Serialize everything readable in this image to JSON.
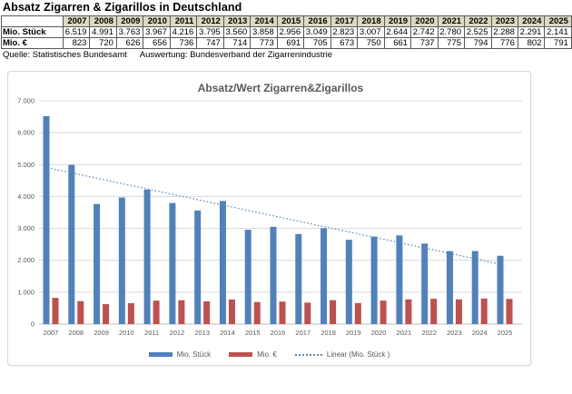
{
  "page": {
    "title": "Absatz Zigarren & Zigarillos in Deutschland",
    "source": {
      "quelle": "Quelle: Statistisches Bundesamt",
      "auswertung": "Auswertung: Bundesverband der Zigarrenindustrie"
    }
  },
  "table": {
    "years": [
      "2007",
      "2008",
      "2009",
      "2010",
      "2011",
      "2012",
      "2013",
      "2014",
      "2015",
      "2016",
      "2017",
      "2018",
      "2019",
      "2020",
      "2021",
      "2022",
      "2023",
      "2024",
      "2025"
    ],
    "rows": [
      {
        "label": "Mio. Stück",
        "values": [
          "6.519",
          "4.991",
          "3.763",
          "3.967",
          "4.216",
          "3.795",
          "3.560",
          "3.858",
          "2.956",
          "3.049",
          "2.823",
          "3.007",
          "2.644",
          "2.742",
          "2.780",
          "2.525",
          "2.288",
          "2.291",
          "2.141"
        ]
      },
      {
        "label": "Mio. €",
        "values": [
          "823",
          "720",
          "626",
          "656",
          "736",
          "747",
          "714",
          "773",
          "691",
          "705",
          "673",
          "750",
          "661",
          "737",
          "775",
          "794",
          "776",
          "802",
          "791"
        ]
      }
    ],
    "header_bg": "#ddd9c3"
  },
  "chart_data": {
    "type": "bar",
    "title": "Absatz/Wert Zigarren&Zigarillos",
    "title_color": "#595959",
    "categories": [
      "2007",
      "2008",
      "2009",
      "2010",
      "2011",
      "2012",
      "2013",
      "2014",
      "2015",
      "2016",
      "2017",
      "2018",
      "2019",
      "2020",
      "2021",
      "2022",
      "2023",
      "2024",
      "2025"
    ],
    "series": [
      {
        "name": "Mio. Stück",
        "color": "#4F81BD",
        "values": [
          6519,
          4991,
          3763,
          3967,
          4216,
          3795,
          3560,
          3858,
          2956,
          3049,
          2823,
          3007,
          2644,
          2742,
          2780,
          2525,
          2288,
          2291,
          2141
        ]
      },
      {
        "name": "Mio. €",
        "color": "#C0504D",
        "values": [
          823,
          720,
          626,
          656,
          736,
          747,
          714,
          773,
          691,
          705,
          673,
          750,
          661,
          737,
          775,
          794,
          776,
          802,
          791
        ]
      }
    ],
    "trendline": {
      "label": "Linear (Mio. Stück  )",
      "color": "#5b88bb",
      "style": "dotted",
      "start_value": 4879,
      "end_value": 1849
    },
    "ylim": [
      0,
      7000
    ],
    "y_ticks": [
      {
        "v": 0,
        "label": "0"
      },
      {
        "v": 1000,
        "label": "1.000"
      },
      {
        "v": 2000,
        "label": "2.000"
      },
      {
        "v": 3000,
        "label": "3.000"
      },
      {
        "v": 4000,
        "label": "4.000"
      },
      {
        "v": 5000,
        "label": "5.000"
      },
      {
        "v": 6000,
        "label": "6.000"
      },
      {
        "v": 7000,
        "label": "7.000"
      }
    ],
    "grid": true,
    "gridline_color": "#d9d9d9",
    "axis_color": "#bfbfbf",
    "tick_label_color": "#595959",
    "legend_position": "bottom"
  }
}
